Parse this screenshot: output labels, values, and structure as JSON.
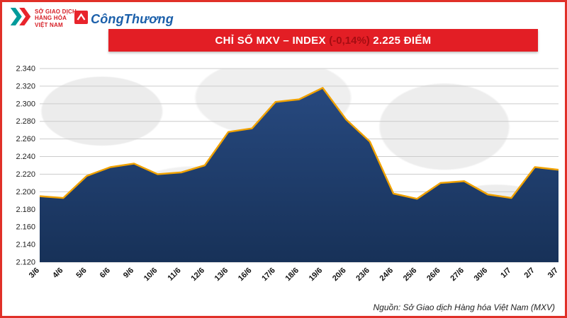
{
  "page": {
    "border_color": "#e03028"
  },
  "header": {
    "mxv_logo": {
      "line1": "SỞ GIAO DỊCH",
      "line2": "HÀNG HÓA",
      "line3": "VIỆT NAM"
    },
    "congthuong_logo": {
      "text": "CôngThương"
    },
    "banner": {
      "title_main": "CHỈ SỐ MXV – INDEX ",
      "change": "(-0,14%)",
      "value": " 2.225 ĐIỂM",
      "bg_color": "#e31e25",
      "change_color": "#a50d12"
    }
  },
  "chart_data": {
    "type": "area",
    "title": "CHỈ SỐ MXV – INDEX (-0,14%) 2.225 ĐIỂM",
    "categories": [
      "3/6",
      "4/6",
      "5/6",
      "6/6",
      "9/6",
      "10/6",
      "11/6",
      "12/6",
      "13/6",
      "16/6",
      "17/6",
      "18/6",
      "19/6",
      "20/6",
      "23/6",
      "24/6",
      "25/6",
      "26/6",
      "27/6",
      "30/6",
      "1/7",
      "2/7",
      "3/7"
    ],
    "values": [
      2195,
      2193,
      2218,
      2228,
      2232,
      2220,
      2222,
      2230,
      2268,
      2272,
      2302,
      2305,
      2318,
      2282,
      2257,
      2198,
      2192,
      2210,
      2212,
      2197,
      2193,
      2228,
      2225
    ],
    "xlabel": "",
    "ylabel": "",
    "ylim": [
      2120,
      2340
    ],
    "ytick_step": 20,
    "ytick_labels": [
      "2.120",
      "2.140",
      "2.160",
      "2.180",
      "2.200",
      "2.220",
      "2.240",
      "2.260",
      "2.280",
      "2.300",
      "2.320",
      "2.340"
    ],
    "grid": true,
    "grid_color": "#cccccc",
    "line_color": "#f0a202",
    "fill_top": "#27497f",
    "fill_bottom": "#173158",
    "legend": "none"
  },
  "footer": {
    "source": "Nguồn: Sở Giao dịch Hàng hóa Việt Nam (MXV)"
  }
}
